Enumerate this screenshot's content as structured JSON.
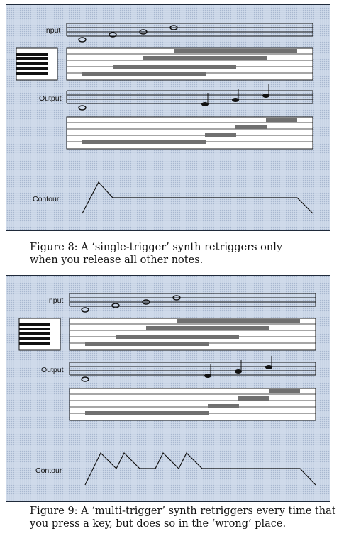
{
  "figures": [
    {
      "labels": {
        "input": "Input",
        "output": "Output",
        "contour": "Contour"
      },
      "caption": [
        "Figure 8: A ‘single-trigger’ synth retriggers only",
        "when you release all other notes."
      ]
    },
    {
      "labels": {
        "input": "Input",
        "output": "Output",
        "contour": "Contour"
      },
      "caption": [
        "Figure 9: A ‘multi-trigger’ synth retriggers every time that",
        "you press a key, but does so in the ‘wrong’ place."
      ]
    }
  ],
  "colors": {
    "panel_background": "#cfdaea",
    "note_bar": "#707070",
    "key_black": "#111111",
    "line": "#111111"
  }
}
